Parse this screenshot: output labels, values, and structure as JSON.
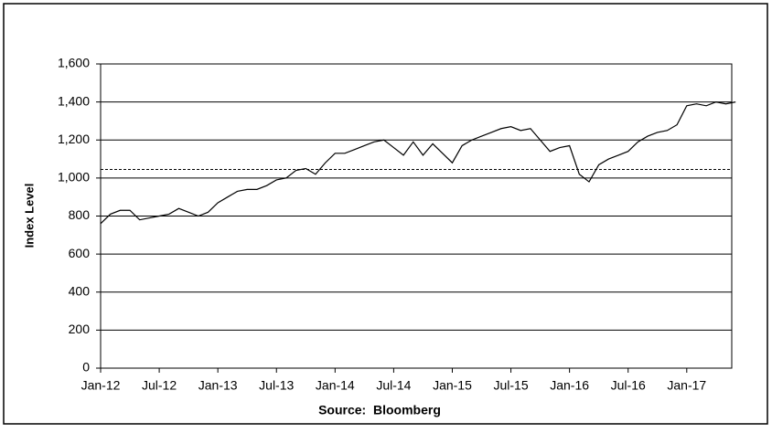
{
  "chart_data": {
    "type": "line",
    "y_label": "Index Level",
    "source": "Source:  Bloomberg",
    "categories": [
      "Jan-12",
      null,
      null,
      null,
      null,
      null,
      "Jul-12",
      null,
      null,
      null,
      null,
      null,
      "Jan-13",
      null,
      null,
      null,
      null,
      null,
      "Jul-13",
      null,
      null,
      null,
      null,
      null,
      "Jan-14",
      null,
      null,
      null,
      null,
      null,
      "Jul-14",
      null,
      null,
      null,
      null,
      null,
      "Jan-15",
      null,
      null,
      null,
      null,
      null,
      "Jul-15",
      null,
      null,
      null,
      null,
      null,
      "Jan-16",
      null,
      null,
      null,
      null,
      null,
      "Jul-16",
      null,
      null,
      null,
      null,
      null,
      "Jan-17",
      null,
      null,
      null,
      null,
      null
    ],
    "values": [
      760,
      810,
      830,
      830,
      780,
      790,
      800,
      810,
      840,
      820,
      800,
      820,
      870,
      900,
      930,
      940,
      940,
      960,
      990,
      1000,
      1040,
      1050,
      1020,
      1080,
      1130,
      1130,
      1150,
      1170,
      1190,
      1200,
      1160,
      1120,
      1190,
      1120,
      1180,
      1130,
      1080,
      1170,
      1200,
      1220,
      1240,
      1260,
      1270,
      1250,
      1260,
      1200,
      1140,
      1160,
      1170,
      1020,
      980,
      1070,
      1100,
      1120,
      1140,
      1190,
      1220,
      1240,
      1250,
      1280,
      1380,
      1390,
      1380,
      1400,
      1390,
      1400
    ],
    "color": "#000000",
    "reference_line": 1045,
    "ylim": [
      0,
      1600
    ],
    "yticks": [
      0,
      200,
      400,
      600,
      800,
      {
        "value": 1000,
        "label": "1,000"
      },
      {
        "value": 1200,
        "label": "1,200"
      },
      {
        "value": 1400,
        "label": "1,400"
      },
      {
        "value": 1600,
        "label": "1,600"
      }
    ],
    "grid": true
  }
}
